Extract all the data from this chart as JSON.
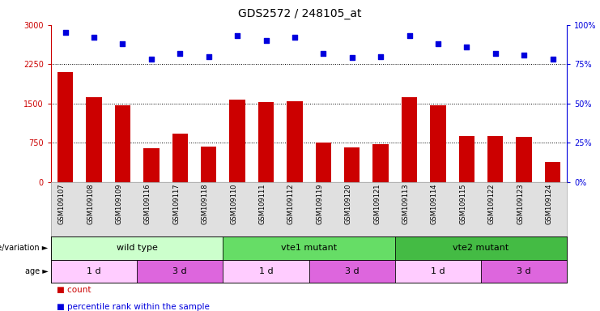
{
  "title": "GDS2572 / 248105_at",
  "samples": [
    "GSM109107",
    "GSM109108",
    "GSM109109",
    "GSM109116",
    "GSM109117",
    "GSM109118",
    "GSM109110",
    "GSM109111",
    "GSM109112",
    "GSM109119",
    "GSM109120",
    "GSM109121",
    "GSM109113",
    "GSM109114",
    "GSM109115",
    "GSM109122",
    "GSM109123",
    "GSM109124"
  ],
  "counts": [
    2100,
    1620,
    1470,
    650,
    920,
    680,
    1580,
    1530,
    1540,
    750,
    660,
    720,
    1620,
    1470,
    870,
    870,
    860,
    380
  ],
  "percentile_ranks": [
    95,
    92,
    88,
    78,
    82,
    80,
    93,
    90,
    92,
    82,
    79,
    80,
    93,
    88,
    86,
    82,
    81,
    78
  ],
  "bar_color": "#CC0000",
  "dot_color": "#0000DD",
  "left_ylim": [
    0,
    3000
  ],
  "left_yticks": [
    0,
    750,
    1500,
    2250,
    3000
  ],
  "right_ylim": [
    0,
    100
  ],
  "right_yticks": [
    0,
    25,
    50,
    75,
    100
  ],
  "right_yticklabels": [
    "0%",
    "25%",
    "50%",
    "75%",
    "100%"
  ],
  "genotype_groups": [
    {
      "label": "wild type",
      "start": 0,
      "end": 6,
      "color": "#CCFFCC"
    },
    {
      "label": "vte1 mutant",
      "start": 6,
      "end": 12,
      "color": "#66DD66"
    },
    {
      "label": "vte2 mutant",
      "start": 12,
      "end": 18,
      "color": "#44BB44"
    }
  ],
  "age_groups": [
    {
      "label": "1 d",
      "start": 0,
      "end": 3,
      "color": "#FFCCFF"
    },
    {
      "label": "3 d",
      "start": 3,
      "end": 6,
      "color": "#DD66DD"
    },
    {
      "label": "1 d",
      "start": 6,
      "end": 9,
      "color": "#FFCCFF"
    },
    {
      "label": "3 d",
      "start": 9,
      "end": 12,
      "color": "#DD66DD"
    },
    {
      "label": "1 d",
      "start": 12,
      "end": 15,
      "color": "#FFCCFF"
    },
    {
      "label": "3 d",
      "start": 15,
      "end": 18,
      "color": "#DD66DD"
    }
  ],
  "genotype_label": "genotype/variation",
  "age_label": "age",
  "legend_count_label": "count",
  "legend_pct_label": "percentile rank within the sample",
  "background_color": "#FFFFFF",
  "title_fontsize": 10,
  "tick_fontsize": 7,
  "bar_width": 0.55,
  "sample_label_fontsize": 6,
  "group_fontsize": 8,
  "legend_fontsize": 7.5
}
